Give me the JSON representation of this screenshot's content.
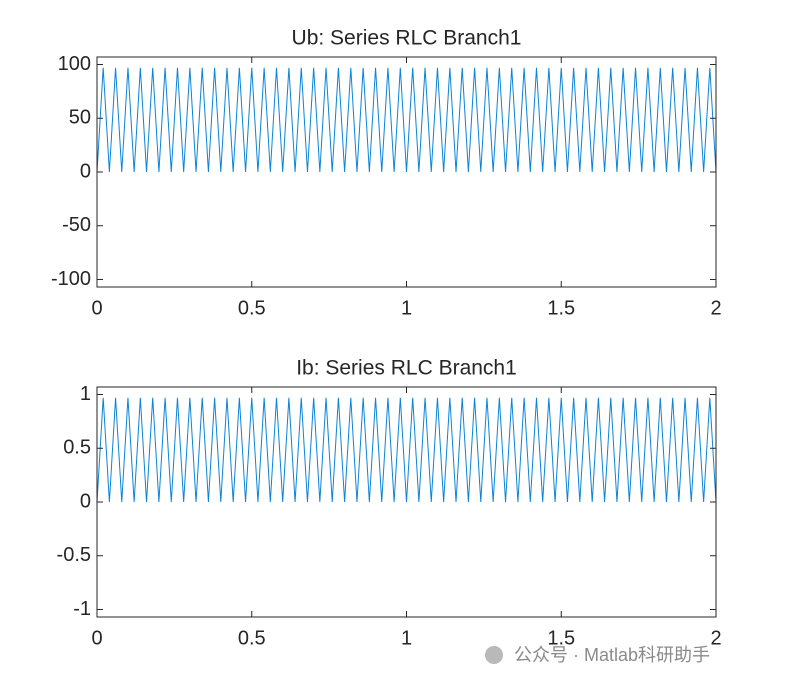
{
  "chart_data": [
    {
      "type": "line",
      "title": "Ub: Series RLC Branch1",
      "color": "#0b84d8",
      "x": [
        0,
        0.02,
        0.04,
        0.06,
        0.08,
        0.1,
        0.12,
        0.14,
        0.16,
        0.18,
        0.2,
        0.22,
        0.24,
        0.26,
        0.28,
        0.3,
        0.32,
        0.34,
        0.36,
        0.38,
        0.4,
        0.42,
        0.44,
        0.46,
        0.48,
        0.5,
        0.52,
        0.54,
        0.56,
        0.58,
        0.6,
        0.62,
        0.64,
        0.66,
        0.68,
        0.7,
        0.72,
        0.74,
        0.76,
        0.78,
        0.8,
        0.82,
        0.84,
        0.86,
        0.88,
        0.9,
        0.92,
        0.94,
        0.96,
        0.98,
        1,
        1.02,
        1.04,
        1.06,
        1.08,
        1.1,
        1.12,
        1.14,
        1.16,
        1.18,
        1.2,
        1.22,
        1.24,
        1.26,
        1.28,
        1.3,
        1.32,
        1.34,
        1.36,
        1.38,
        1.4,
        1.42,
        1.44,
        1.46,
        1.48,
        1.5,
        1.52,
        1.54,
        1.56,
        1.58,
        1.6,
        1.62,
        1.64,
        1.66,
        1.68,
        1.7,
        1.72,
        1.74,
        1.76,
        1.78,
        1.8,
        1.82,
        1.84,
        1.86,
        1.88,
        1.9,
        1.92,
        1.94,
        1.96,
        1.98,
        2
      ],
      "values": [
        0,
        97,
        0,
        97,
        0,
        97,
        0,
        97,
        0,
        97,
        0,
        97,
        0,
        97,
        0,
        97,
        0,
        97,
        0,
        97,
        0,
        97,
        0,
        97,
        0,
        97,
        0,
        97,
        0,
        97,
        0,
        97,
        0,
        97,
        0,
        97,
        0,
        97,
        0,
        97,
        0,
        97,
        0,
        97,
        0,
        97,
        0,
        97,
        0,
        97,
        0,
        97,
        0,
        97,
        0,
        97,
        0,
        97,
        0,
        97,
        0,
        97,
        0,
        97,
        0,
        97,
        0,
        97,
        0,
        97,
        0,
        97,
        0,
        97,
        0,
        97,
        0,
        97,
        0,
        97,
        0,
        97,
        0,
        97,
        0,
        97,
        0,
        97,
        0,
        97,
        0,
        97,
        0,
        97,
        0,
        97,
        0,
        97,
        0,
        97,
        0
      ],
      "xlim": [
        0,
        2
      ],
      "xticks": [
        0,
        0.5,
        1,
        1.5,
        2
      ],
      "ylim": [
        -107,
        107
      ],
      "yticks": [
        100,
        50,
        0,
        -50,
        -100
      ]
    },
    {
      "type": "line",
      "title": "Ib: Series RLC Branch1",
      "color": "#0b84d8",
      "x": [
        0,
        0.02,
        0.04,
        0.06,
        0.08,
        0.1,
        0.12,
        0.14,
        0.16,
        0.18,
        0.2,
        0.22,
        0.24,
        0.26,
        0.28,
        0.3,
        0.32,
        0.34,
        0.36,
        0.38,
        0.4,
        0.42,
        0.44,
        0.46,
        0.48,
        0.5,
        0.52,
        0.54,
        0.56,
        0.58,
        0.6,
        0.62,
        0.64,
        0.66,
        0.68,
        0.7,
        0.72,
        0.74,
        0.76,
        0.78,
        0.8,
        0.82,
        0.84,
        0.86,
        0.88,
        0.9,
        0.92,
        0.94,
        0.96,
        0.98,
        1,
        1.02,
        1.04,
        1.06,
        1.08,
        1.1,
        1.12,
        1.14,
        1.16,
        1.18,
        1.2,
        1.22,
        1.24,
        1.26,
        1.28,
        1.3,
        1.32,
        1.34,
        1.36,
        1.38,
        1.4,
        1.42,
        1.44,
        1.46,
        1.48,
        1.5,
        1.52,
        1.54,
        1.56,
        1.58,
        1.6,
        1.62,
        1.64,
        1.66,
        1.68,
        1.7,
        1.72,
        1.74,
        1.76,
        1.78,
        1.8,
        1.82,
        1.84,
        1.86,
        1.88,
        1.9,
        1.92,
        1.94,
        1.96,
        1.98,
        2
      ],
      "values": [
        0,
        0.97,
        0,
        0.97,
        0,
        0.97,
        0,
        0.97,
        0,
        0.97,
        0,
        0.97,
        0,
        0.97,
        0,
        0.97,
        0,
        0.97,
        0,
        0.97,
        0,
        0.97,
        0,
        0.97,
        0,
        0.97,
        0,
        0.97,
        0,
        0.97,
        0,
        0.97,
        0,
        0.97,
        0,
        0.97,
        0,
        0.97,
        0,
        0.97,
        0,
        0.97,
        0,
        0.97,
        0,
        0.97,
        0,
        0.97,
        0,
        0.97,
        0,
        0.97,
        0,
        0.97,
        0,
        0.97,
        0,
        0.97,
        0,
        0.97,
        0,
        0.97,
        0,
        0.97,
        0,
        0.97,
        0,
        0.97,
        0,
        0.97,
        0,
        0.97,
        0,
        0.97,
        0,
        0.97,
        0,
        0.97,
        0,
        0.97,
        0,
        0.97,
        0,
        0.97,
        0,
        0.97,
        0,
        0.97,
        0,
        0.97,
        0,
        0.97,
        0,
        0.97,
        0,
        0.97,
        0,
        0.97,
        0,
        0.97,
        0
      ],
      "xlim": [
        0,
        2
      ],
      "xticks": [
        0,
        0.5,
        1,
        1.5,
        2
      ],
      "ylim": [
        -1.07,
        1.07
      ],
      "yticks": [
        1,
        0.5,
        0,
        -0.5,
        -1
      ]
    }
  ],
  "watermark": "公众号 · Matlab科研助手"
}
